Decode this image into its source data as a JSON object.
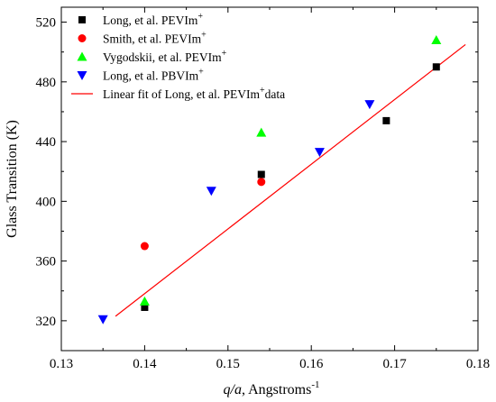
{
  "chart_data": {
    "type": "scatter",
    "xlabel": {
      "italic": "q/a",
      "rest": ", Angstroms",
      "sup": "-1"
    },
    "ylabel": "Glass Transition (K)",
    "xlim": [
      0.13,
      0.18
    ],
    "ylim": [
      300,
      530
    ],
    "xticks": [
      0.13,
      0.14,
      0.15,
      0.16,
      0.17,
      0.18
    ],
    "yticks": [
      320,
      360,
      400,
      440,
      480,
      520
    ],
    "grid": false,
    "legend_position": "top-left",
    "series": [
      {
        "name": "Long, et al. PEVIm",
        "name_sup": "+",
        "marker": "square",
        "color": "#000000",
        "points": [
          [
            0.14,
            329
          ],
          [
            0.154,
            418
          ],
          [
            0.169,
            454
          ],
          [
            0.175,
            490
          ]
        ]
      },
      {
        "name": "Smith, et al. PEVIm",
        "name_sup": "+",
        "marker": "circle",
        "color": "#ff0000",
        "points": [
          [
            0.14,
            370
          ],
          [
            0.154,
            413
          ]
        ]
      },
      {
        "name": "Vygodskii, et al. PEVIm",
        "name_sup": "+",
        "marker": "triangle-up",
        "color": "#00ff00",
        "points": [
          [
            0.14,
            333
          ],
          [
            0.154,
            446
          ],
          [
            0.175,
            508
          ]
        ]
      },
      {
        "name": "Long, et al. PBVIm",
        "name_sup": "+",
        "marker": "triangle-down",
        "color": "#0000ff",
        "points": [
          [
            0.135,
            321
          ],
          [
            0.148,
            407
          ],
          [
            0.161,
            433
          ],
          [
            0.167,
            465
          ]
        ]
      }
    ],
    "fit": {
      "name": "Linear fit of Long, et al. PEVIm",
      "name_sup": "+",
      "name_suffix": "data",
      "color": "#ff0000",
      "points": [
        [
          0.1365,
          323
        ],
        [
          0.1785,
          505
        ]
      ]
    }
  }
}
